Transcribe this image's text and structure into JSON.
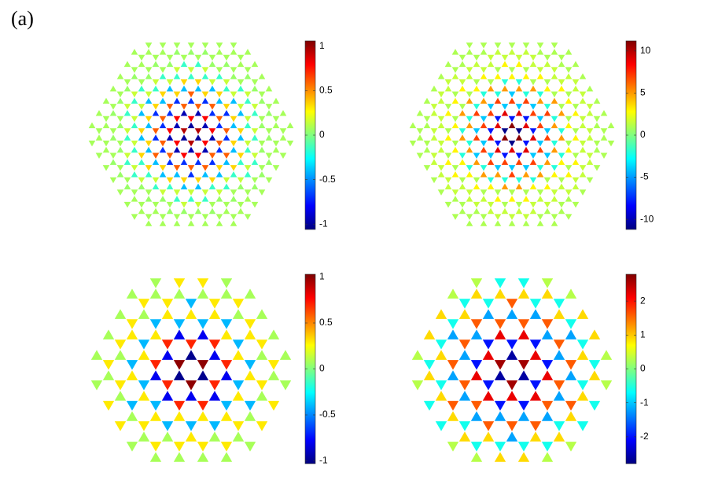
{
  "label": "(a)",
  "chart_data": [
    {
      "type": "heatmap",
      "colormap": "jet",
      "zlim": [
        -1.06,
        1.06
      ],
      "zticks": [
        -1,
        -0.5,
        0,
        0.5,
        1
      ],
      "up_values": [
        -1,
        -0.95,
        -0.7,
        -0.4,
        -0.15,
        0.05,
        0.08,
        0.08
      ],
      "down_values": [
        0.95,
        0.8,
        0.6,
        0.35,
        0.15,
        0.08,
        0.08,
        0.08
      ]
    },
    {
      "type": "heatmap",
      "colormap": "jet",
      "zlim": [
        -11.2,
        11.2
      ],
      "zticks": [
        -10,
        -5,
        0,
        5,
        10
      ],
      "up_values": [
        11,
        9,
        7,
        5,
        3,
        1.5,
        1,
        1
      ],
      "down_values": [
        -11,
        -8,
        -4,
        -2,
        1,
        1.5,
        1,
        1
      ]
    },
    {
      "type": "heatmap",
      "colormap": "jet",
      "zlim": [
        -1.03,
        1.03
      ],
      "zticks": [
        -1,
        -0.5,
        0,
        0.5,
        1
      ],
      "up_values": [
        -1,
        -0.8,
        0.3,
        0.08,
        0.08
      ],
      "down_values": [
        1,
        0.7,
        -0.4,
        0.3,
        0.08
      ]
    },
    {
      "type": "heatmap",
      "colormap": "jet",
      "zlim": [
        -2.79,
        2.79
      ],
      "zticks": [
        -2,
        -1,
        0,
        1,
        2
      ],
      "up_values": [
        -2.6,
        2.2,
        -1.2,
        0.9,
        0.3
      ],
      "down_values": [
        2.6,
        -2,
        1.6,
        -0.6,
        0.3
      ]
    }
  ]
}
